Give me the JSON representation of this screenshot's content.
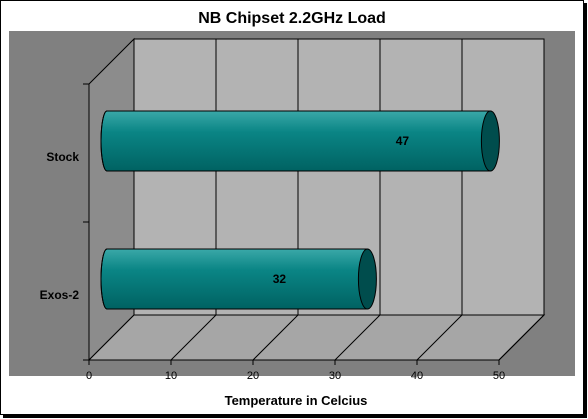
{
  "chart_data": {
    "type": "bar",
    "orientation": "horizontal",
    "title": "NB Chipset 2.2GHz Load",
    "xlabel": "Temperature in Celcius",
    "ylabel": "",
    "categories": [
      "Stock",
      "Exos-2"
    ],
    "values": [
      47,
      32
    ],
    "xlim": [
      0,
      50
    ],
    "xticks": [
      0,
      10,
      20,
      30,
      40,
      50
    ],
    "grid": true,
    "legend": "none",
    "colors": {
      "bar": "#008080",
      "bar_cap": "#004d4d",
      "back_wall": "#b3b3b3",
      "side_wall": "#8c8c8c",
      "floor": "#a6a6a6",
      "chart_background": "#808080"
    }
  }
}
